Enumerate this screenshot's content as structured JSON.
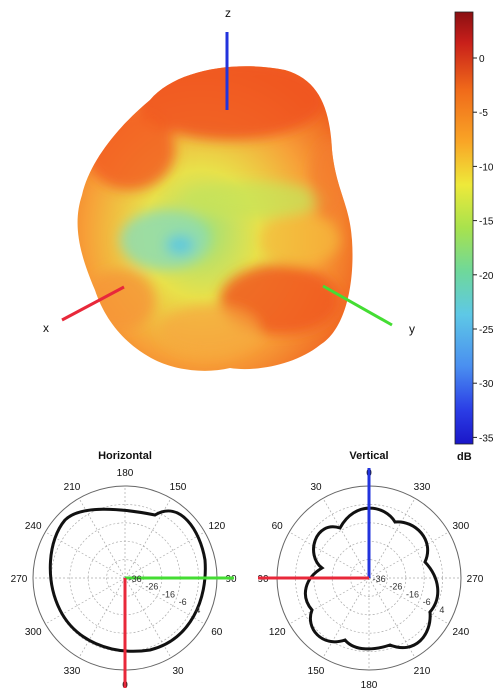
{
  "axes_3d": {
    "z": "z",
    "x": "x",
    "y": "y"
  },
  "colorbar": {
    "unit": "dB",
    "ticks": [
      "0",
      "-5",
      "-10",
      "-15",
      "-20",
      "-25",
      "-30",
      "-35"
    ],
    "colors": [
      "#8a0f12",
      "#d8261b",
      "#f06a1a",
      "#f9a526",
      "#eee93a",
      "#a8e24d",
      "#6fd89a",
      "#5ec8e6",
      "#4a8ff0",
      "#2b3ee6",
      "#1a16c8"
    ]
  },
  "pattern_colors": {
    "body_warm": "#f46a22",
    "body_orange": "#f8a13a",
    "body_yellow": "#e9e14a",
    "body_green": "#a9e36b",
    "body_cyan": "#66d5c8",
    "outline": "#111111"
  },
  "horizontal_plot": {
    "title": "Horizontal",
    "angle_labels": [
      {
        "text": "180"
      },
      {
        "text": "150"
      },
      {
        "text": "120"
      },
      {
        "text": "90"
      },
      {
        "text": "60"
      },
      {
        "text": "30"
      },
      {
        "text": "0"
      },
      {
        "text": "330"
      },
      {
        "text": "300"
      },
      {
        "text": "270"
      },
      {
        "text": "240"
      },
      {
        "text": "210"
      }
    ],
    "ring_labels": [
      "-36",
      "-26",
      "-16",
      "-6",
      "4"
    ]
  },
  "vertical_plot": {
    "title": "Vertical",
    "angle_labels": [
      {
        "text": "0"
      },
      {
        "text": "330"
      },
      {
        "text": "300"
      },
      {
        "text": "270"
      },
      {
        "text": "240"
      },
      {
        "text": "210"
      },
      {
        "text": "180"
      },
      {
        "text": "150"
      },
      {
        "text": "120"
      },
      {
        "text": "90"
      },
      {
        "text": "60"
      },
      {
        "text": "30"
      }
    ],
    "ring_labels": [
      "-36",
      "-26",
      "-16",
      "-6",
      "4"
    ]
  },
  "axis_colors": {
    "x": "#e8283a",
    "y": "#44dd33",
    "z": "#2233dd"
  }
}
